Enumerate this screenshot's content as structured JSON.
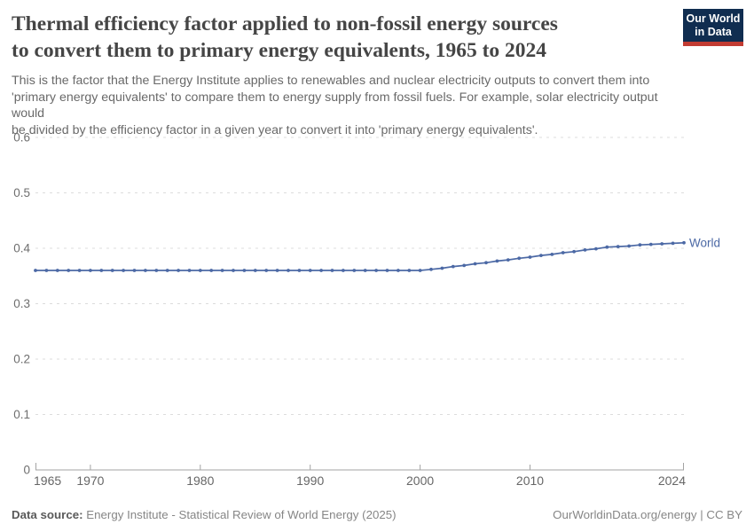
{
  "header": {
    "title_lines": [
      "Thermal efficiency factor applied to non-fossil energy sources",
      "to convert them to primary energy equivalents, 1965 to 2024"
    ],
    "subtitle_lines": [
      "This is the factor that the Energy Institute applies to renewables and nuclear electricity outputs to convert them into",
      "'primary energy equivalents' to compare them to energy supply from fossil fuels. For example, solar electricity output would",
      "be divided by the efficiency factor in a given year to convert it into 'primary energy equivalents'."
    ]
  },
  "logo": {
    "line1": "Our World",
    "line2": "in Data",
    "bg_color": "#102d50",
    "stripe_color": "#c23b32"
  },
  "footer": {
    "source_label": "Data source:",
    "source_text": " Energy Institute - Statistical Review of World Energy (2025)",
    "link_text": "OurWorldinData.org/energy | CC BY"
  },
  "chart_data": {
    "type": "line",
    "title": "Thermal efficiency factor applied to non-fossil energy sources to convert them to primary energy equivalents, 1965 to 2024",
    "xlabel": "",
    "ylabel": "",
    "ylim": [
      0,
      0.6
    ],
    "grid": "horizontal-dashed",
    "legend": "end-of-line-label",
    "yticks": [
      0,
      0.1,
      0.2,
      0.3,
      0.4,
      0.5,
      0.6
    ],
    "ytick_labels": [
      "0",
      "0.1",
      "0.2",
      "0.3",
      "0.4",
      "0.5",
      "0.6"
    ],
    "xticks": [
      1965,
      1970,
      1980,
      1990,
      2000,
      2010,
      2024
    ],
    "x": [
      1965,
      1966,
      1967,
      1968,
      1969,
      1970,
      1971,
      1972,
      1973,
      1974,
      1975,
      1976,
      1977,
      1978,
      1979,
      1980,
      1981,
      1982,
      1983,
      1984,
      1985,
      1986,
      1987,
      1988,
      1989,
      1990,
      1991,
      1992,
      1993,
      1994,
      1995,
      1996,
      1997,
      1998,
      1999,
      2000,
      2001,
      2002,
      2003,
      2004,
      2005,
      2006,
      2007,
      2008,
      2009,
      2010,
      2011,
      2012,
      2013,
      2014,
      2015,
      2016,
      2017,
      2018,
      2019,
      2020,
      2021,
      2022,
      2023,
      2024
    ],
    "series": [
      {
        "name": "World",
        "color": "#4c69a5",
        "values": [
          0.36,
          0.36,
          0.36,
          0.36,
          0.36,
          0.36,
          0.36,
          0.36,
          0.36,
          0.36,
          0.36,
          0.36,
          0.36,
          0.36,
          0.36,
          0.36,
          0.36,
          0.36,
          0.36,
          0.36,
          0.36,
          0.36,
          0.36,
          0.36,
          0.36,
          0.36,
          0.36,
          0.36,
          0.36,
          0.36,
          0.36,
          0.36,
          0.36,
          0.36,
          0.36,
          0.36,
          0.362,
          0.364,
          0.367,
          0.369,
          0.372,
          0.374,
          0.377,
          0.379,
          0.382,
          0.384,
          0.387,
          0.389,
          0.392,
          0.394,
          0.397,
          0.399,
          0.402,
          0.403,
          0.404,
          0.406,
          0.407,
          0.408,
          0.409,
          0.41
        ]
      }
    ]
  }
}
